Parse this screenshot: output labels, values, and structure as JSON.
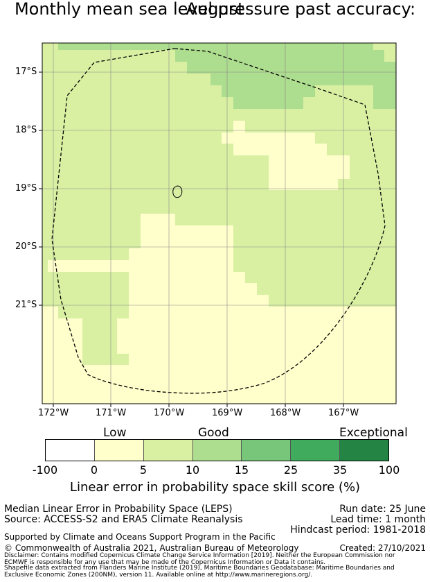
{
  "title_line1": "Monthly mean sea level pressure past accuracy:",
  "title_line2": "August",
  "map": {
    "lat_labels": [
      "17°S",
      "18°S",
      "19°S",
      "20°S",
      "21°S"
    ],
    "lon_labels": [
      "172°W",
      "171°W",
      "170°W",
      "169°W",
      "168°W",
      "167°W"
    ],
    "colors": {
      "low": "#ffffcc",
      "good5": "#d9f0a3",
      "good10": "#addd8e",
      "eez_line": "#000000"
    }
  },
  "legend": {
    "categories": [
      "Low",
      "Good",
      "Exceptional"
    ],
    "ticks": [
      "-100",
      "0",
      "5",
      "10",
      "15",
      "25",
      "35",
      "100"
    ],
    "segment_colors": [
      "#ffffff",
      "#ffffcc",
      "#d9f0a3",
      "#addd8e",
      "#78c679",
      "#41ab5d",
      "#238443"
    ],
    "label": "Linear error in probability space skill score (%)"
  },
  "info": {
    "method": "Median Linear Error in Probability Space (LEPS)",
    "source": "Source: ACCESS-S2 and ERA5 Climate Reanalysis",
    "run_date": "Run date: 25 June",
    "lead_time": "Lead time: 1 month",
    "hindcast": "Hindcast period: 1981-2018",
    "support": "Supported by Climate and Oceans Support Program in the Pacific",
    "copyright": "© Commonwealth of Australia 2021, Australian Bureau of Meteorology",
    "created": "Created: 27/10/2021",
    "disclaimer1": "Disclaimer: Contains modified Copernicus Climate Change Service Information [2019]. Neither the European Commission nor",
    "disclaimer2": "ECMWF is responsible for any use that may be made of the Copernicus Information or Data it contains.",
    "shapefile1": "Shapefile data extracted from Flanders Marine Institute (2019), Maritime Boundaries Geodatabase: Maritime Boundaries and",
    "shapefile2": "Exclusive Economic Zones (200NM), version 11. Available online at http://www.marineregions.org/."
  }
}
